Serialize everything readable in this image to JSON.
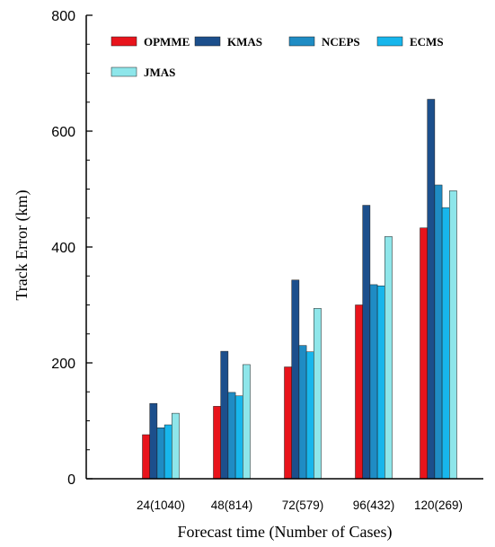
{
  "chart_data": {
    "type": "bar",
    "title": "",
    "xlabel": "Forecast time (Number of Cases)",
    "ylabel": "Track Error (km)",
    "ylim": [
      0,
      800
    ],
    "yticks": [
      "0",
      "200",
      "400",
      "600",
      "800"
    ],
    "grid": false,
    "legend_position": "top-left",
    "categories": [
      "24(1040)",
      "48(814)",
      "72(579)",
      "96(432)",
      "120(269)"
    ],
    "series": [
      {
        "name": "OPMME",
        "color": "#e8141c",
        "values": [
          76,
          125,
          193,
          300,
          433
        ]
      },
      {
        "name": "KMAS",
        "color": "#1c4f8c",
        "values": [
          130,
          220,
          343,
          472,
          655
        ]
      },
      {
        "name": "NCEPS",
        "color": "#1f8cc4",
        "values": [
          88,
          149,
          230,
          335,
          507
        ]
      },
      {
        "name": "ECMS",
        "color": "#17b6ec",
        "values": [
          93,
          143,
          219,
          333,
          468
        ]
      },
      {
        "name": "JMAS",
        "color": "#8ee6ea",
        "values": [
          113,
          197,
          294,
          418,
          497
        ]
      }
    ]
  }
}
